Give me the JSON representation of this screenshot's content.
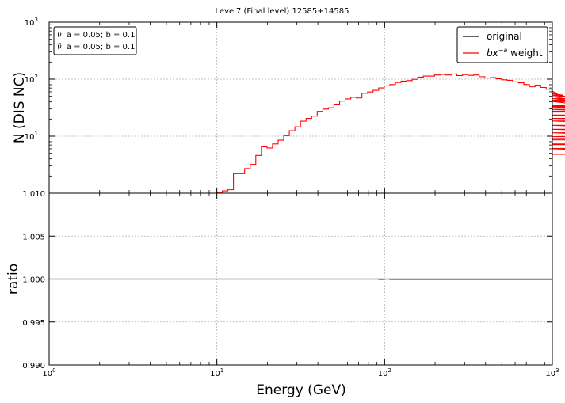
{
  "chart_data": {
    "type": "step",
    "title": "Level7 (Final level) 12585+14585",
    "xlabel": "Energy (GeV)",
    "xscale": "log",
    "xlim": [
      1,
      1000
    ],
    "x_ticks": [
      {
        "base": "10",
        "exp": "0"
      },
      {
        "base": "10",
        "exp": "1"
      },
      {
        "base": "10",
        "exp": "2"
      },
      {
        "base": "10",
        "exp": "3"
      }
    ],
    "grid": true,
    "colors": {
      "original": "#000000",
      "weight": "#ff0000"
    },
    "panels": [
      {
        "name": "counts",
        "ylabel": "N (DIS NC)",
        "yscale": "log",
        "ylim": [
          1,
          1000
        ],
        "y_ticks": [
          {
            "base": "10",
            "exp": "1",
            "value": 10
          },
          {
            "base": "10",
            "exp": "2",
            "value": 100
          },
          {
            "base": "10",
            "exp": "3",
            "value": 1000
          }
        ],
        "legend": {
          "placement": "top-right",
          "entries": [
            {
              "label": "original",
              "color": "#000000"
            },
            {
              "label": "bx",
              "sup": "−a",
              "suffix": " weight",
              "color": "#ff0000"
            }
          ]
        },
        "annotations": [
          {
            "symbol": "ν",
            "text": "a = 0.05;  b = 0.1"
          },
          {
            "symbol": "ν̄",
            "text": "a = 0.05;  b = 0.1"
          }
        ],
        "bins_log10_start": 0,
        "bins_log10_step": 0.0333,
        "series": [
          {
            "name": "bx^-a weight",
            "color": "#ff0000",
            "start_bin": 30,
            "values": [
              1.01,
              1.1,
              1.15,
              2.2,
              2.2,
              2.7,
              3.2,
              4.6,
              6.5,
              6.2,
              7.3,
              8.5,
              10.2,
              12.5,
              14.6,
              18.3,
              20.5,
              22.5,
              27.2,
              29.8,
              31.5,
              36.5,
              41.2,
              45.1,
              48.2,
              46.8,
              56.5,
              59.5,
              63.8,
              70.2,
              76.5,
              80.5,
              87.5,
              92.5,
              94.5,
              99.5,
              108.5,
              113.5,
              113.5,
              118.5,
              121.5,
              118.5,
              123.5,
              115.5,
              120.5,
              116.5,
              118.5,
              110.5,
              104.5,
              106.5,
              101.5,
              97.5,
              95.5,
              89.5,
              86.5,
              80.5,
              73.5,
              78.5,
              71.5,
              66.5,
              61.5,
              55.5,
              52.5,
              49.5,
              42.5,
              45.5,
              40.5,
              40.5,
              33.5,
              34.5,
              32.5,
              29.5,
              26.5,
              27.5,
              23.5,
              20.5,
              18.5,
              18.5,
              15.5,
              13.2,
              13.2,
              11.5,
              9.8,
              11.5,
              9.1,
              8.6,
              9.1,
              7.1,
              7.3,
              5.8,
              6.1,
              4.8
            ]
          }
        ]
      },
      {
        "name": "ratio",
        "ylabel": "ratio",
        "ylim": [
          0.99,
          1.01
        ],
        "y_ticks": [
          "0.990",
          "0.995",
          "1.000",
          "1.005",
          "1.010"
        ],
        "reference_value": 1.0,
        "bins_log10_start": 0,
        "bins_log10_step": 0.0333,
        "series": [
          {
            "name": "bx^-a weight / original",
            "color": "#ff0000",
            "values": [
              1.0,
              1.0,
              1.0,
              1.0,
              1.0,
              1.0,
              1.0,
              1.0,
              1.0,
              1.0,
              1.0,
              1.0,
              1.0,
              1.0,
              1.0,
              1.0,
              1.0,
              1.0,
              1.0,
              1.0,
              1.0,
              1.0,
              1.0,
              1.0,
              1.0,
              1.0,
              1.0,
              1.0,
              1.0,
              1.0,
              1.0,
              1.0,
              1.0,
              1.0,
              1.0,
              1.0,
              1.0,
              1.0,
              1.0,
              1.0,
              1.0,
              1.0,
              1.0,
              1.0,
              1.0,
              1.0,
              1.0,
              1.0,
              1.0,
              1.0,
              1.0,
              1.0,
              1.0,
              1.0,
              1.0,
              1.0,
              1.0,
              1.0,
              1.0,
              0.99995,
              1.0,
              0.99995,
              0.99995,
              0.99995,
              0.99995,
              0.99995,
              0.99995,
              0.99995,
              0.99995,
              0.99995,
              0.99995,
              0.99995,
              0.99995,
              0.99995,
              0.99995,
              0.99995,
              0.99995,
              0.99995,
              0.99995,
              0.99995,
              0.99995,
              0.99995,
              0.99995,
              0.99995,
              0.99995,
              0.99995,
              0.99995,
              0.99995,
              0.99995,
              0.99995,
              0.99995,
              0.99995,
              0.99995,
              0.99995,
              0.99995,
              0.99995,
              0.99995,
              0.99995,
              0.99995,
              0.99995,
              0.99995,
              0.99995,
              0.99995,
              0.99995,
              0.99995,
              0.99995,
              0.99995,
              0.99995,
              0.99995,
              0.99995,
              0.99995,
              0.99995,
              0.99995,
              0.99995,
              0.99995,
              0.99995,
              0.99995,
              0.99995,
              0.99995,
              0.99995,
              0.99995,
              0.99995,
              0.99995,
              0.99995,
              0.99995,
              0.99995,
              0.99995,
              0.99995,
              0.99995,
              0.99995,
              0.99995,
              0.99995,
              0.99995,
              0.99995,
              0.99995,
              0.99995,
              0.99995,
              0.99995,
              0.99995,
              0.99995,
              0.99995,
              0.99995,
              0.99995,
              0.99995,
              0.99995,
              0.99995,
              0.99995,
              0.99995,
              0.99995,
              0.99995,
              0.99995,
              0.99995,
              0.99995,
              0.99995,
              0.99995,
              0.99995,
              0.99995,
              0.99995,
              0.99995,
              0.99995,
              0.99995,
              0.99995,
              0.99995,
              0.99995,
              0.99995,
              0.99995,
              0.99995,
              0.99995,
              0.99995,
              0.99995,
              0.99995,
              0.99995,
              0.99995,
              0.99995,
              0.99995,
              0.99995,
              0.99995,
              0.99995,
              0.99995,
              0.99995,
              0.99995,
              0.99995,
              0.99995,
              0.99995,
              0.99995,
              0.99995,
              0.99995,
              0.99995,
              0.99995,
              0.99995,
              0.99995,
              0.99995,
              0.99995,
              0.99995,
              0.99995,
              0.99995,
              0.99995,
              0.99995,
              0.99995,
              0.99995,
              0.99995,
              0.99995,
              0.99995,
              0.99995,
              0.99995,
              0.99995,
              0.99995,
              0.99995,
              0.99995,
              0.99995,
              0.99995,
              0.99995,
              0.99995,
              0.99995,
              0.99995,
              0.99995,
              0.99995,
              0.99995,
              0.99995,
              0.99995,
              0.99995,
              0.99995,
              0.99995,
              0.99995,
              0.99995,
              0.99995,
              0.99995,
              0.99995,
              0.99995,
              0.99995,
              0.99995,
              0.99995,
              0.99995,
              0.99995,
              0.99995,
              0.99995,
              0.99995,
              0.99995,
              0.99995,
              0.99995,
              0.99995,
              0.99995,
              0.99995,
              0.99995,
              0.99995,
              0.99995,
              0.99995,
              0.99995,
              0.99995,
              0.99995,
              0.99995,
              0.99995,
              0.99995,
              0.99995,
              0.99995,
              0.99995,
              0.99995,
              0.99995,
              0.99995,
              0.99995,
              0.99995,
              0.99995,
              0.99995,
              0.99995,
              0.99995,
              0.99995,
              0.99995,
              0.99995,
              0.99995,
              0.99995
            ]
          }
        ]
      }
    ]
  }
}
